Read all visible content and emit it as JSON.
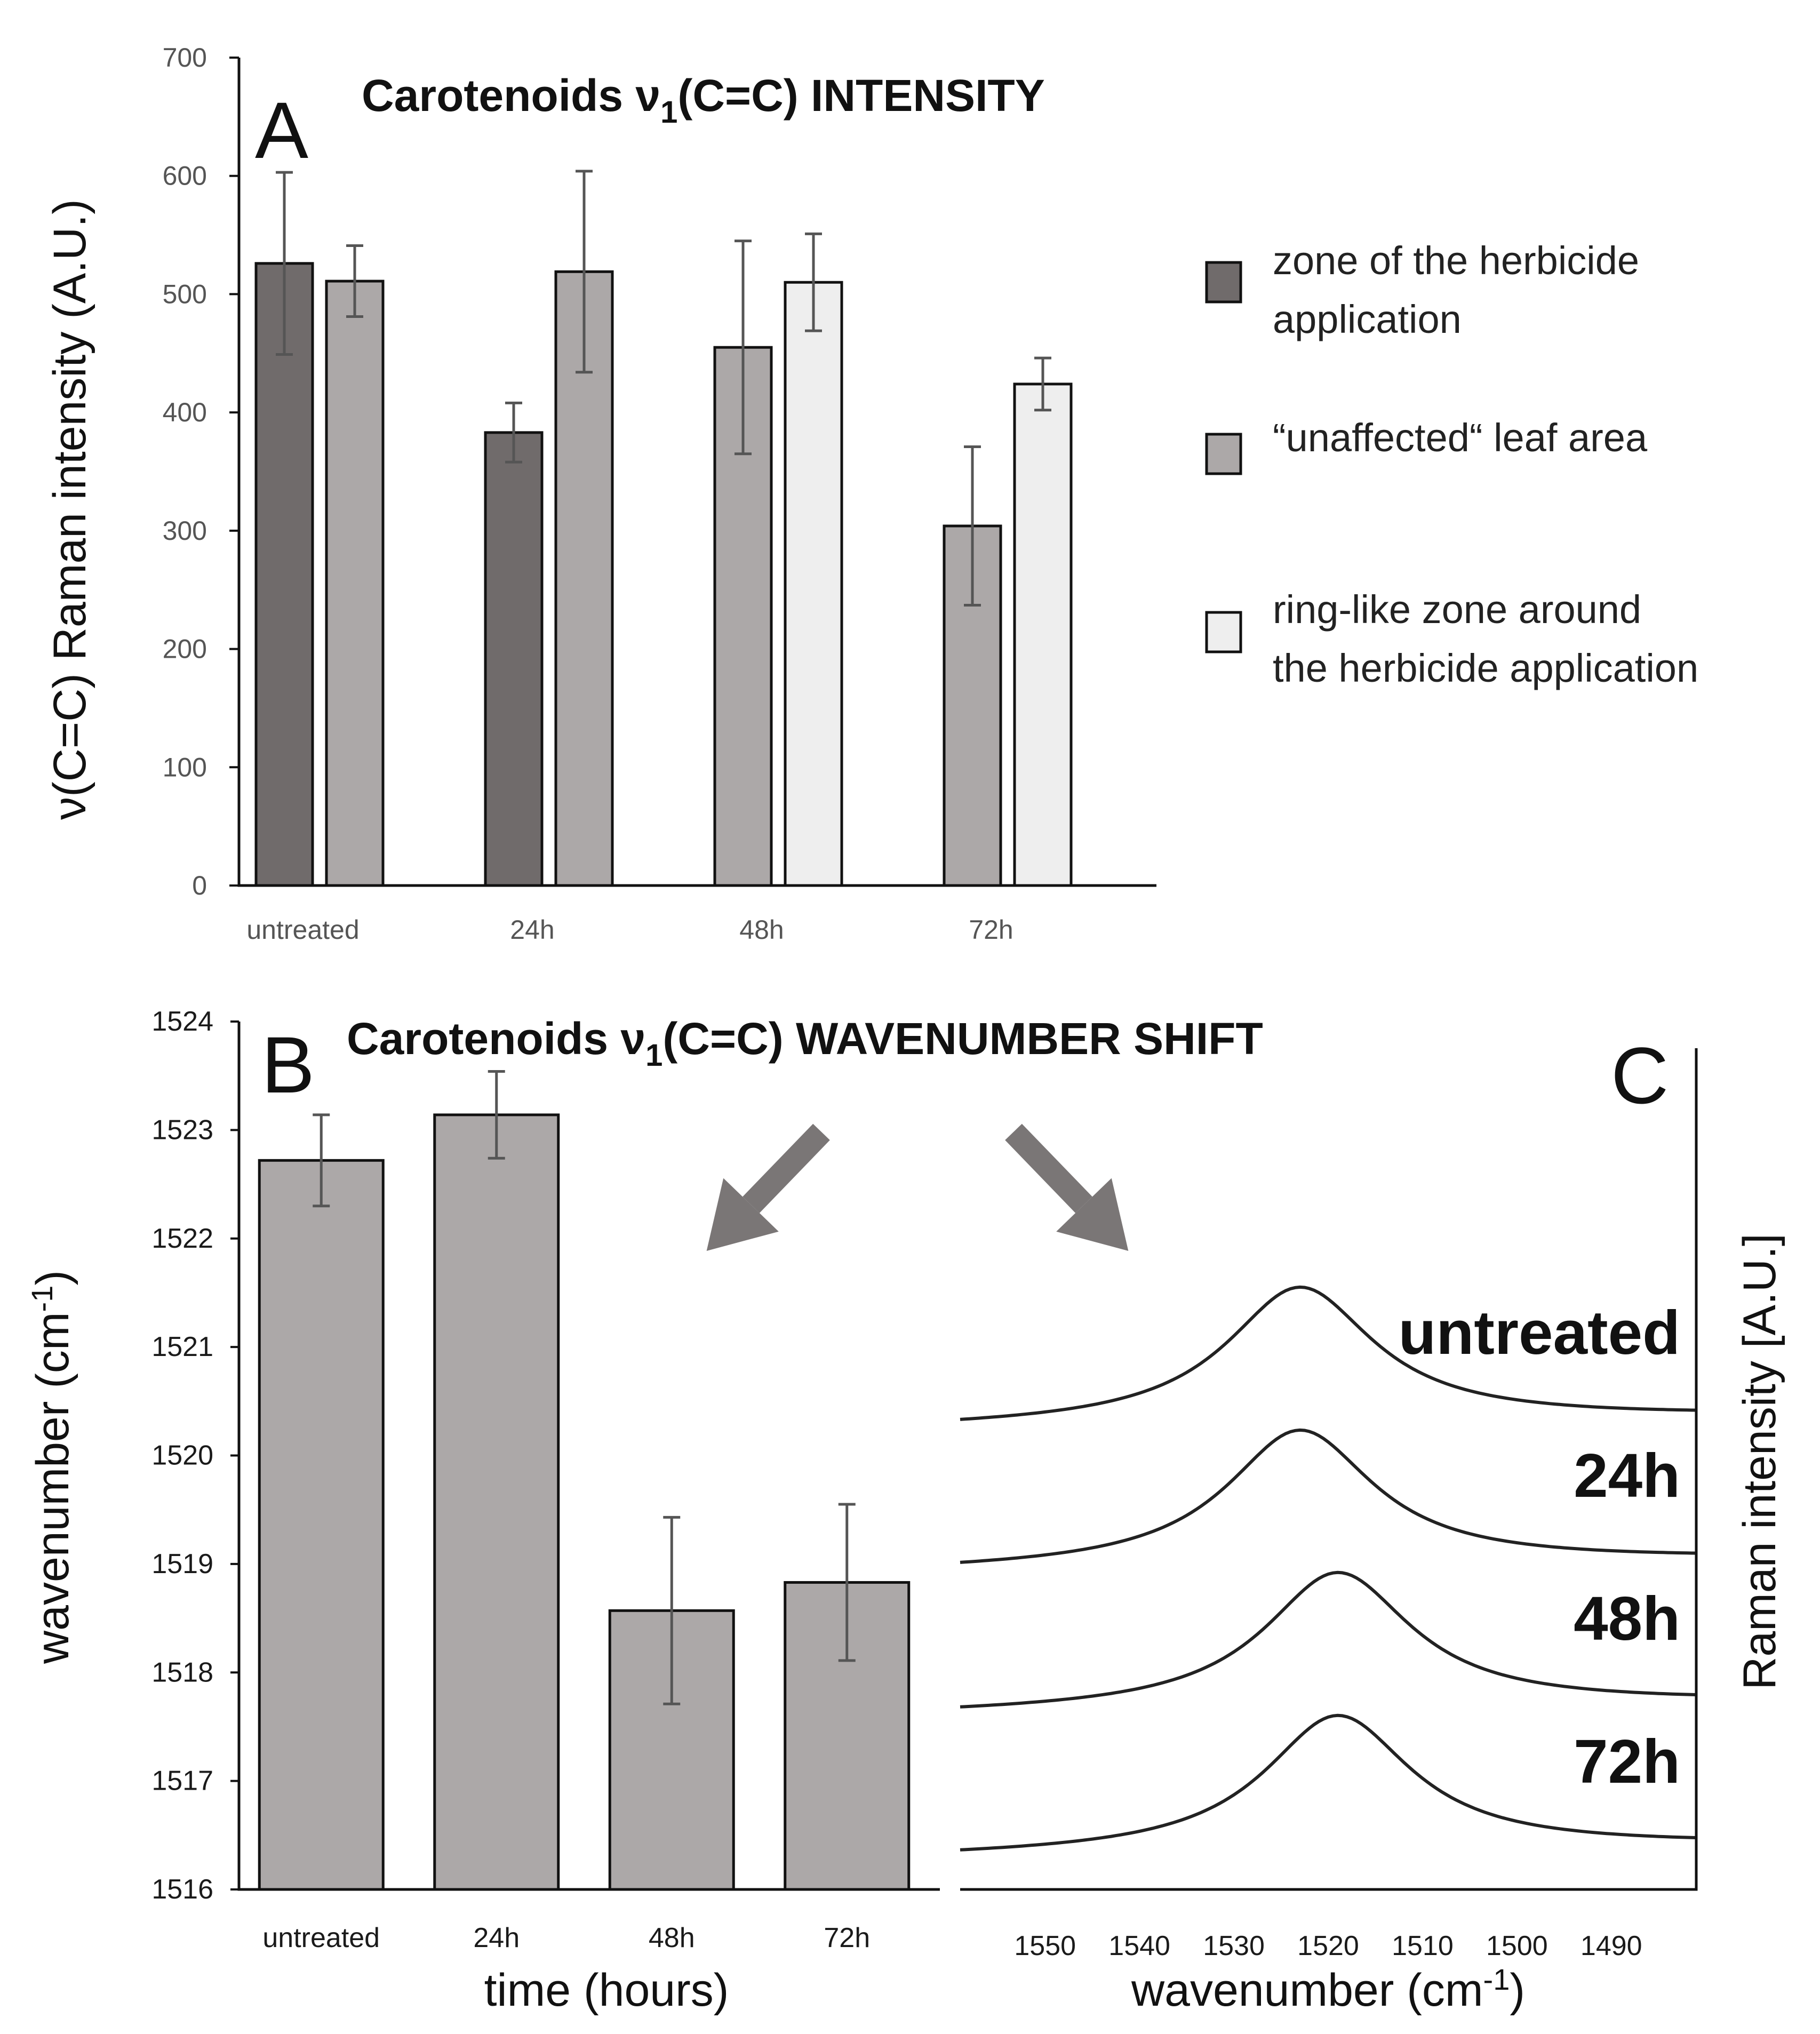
{
  "chart_data": [
    {
      "id": "A",
      "type": "bar",
      "panel_label": "A",
      "title_prefix": "Carotenoids ν",
      "title_sub": "1",
      "title_suffix": "(C=C) INTENSITY",
      "ylabel": "ν(C=C) Raman intensity (A.U.)",
      "xlabel": "",
      "ylim": [
        0,
        700
      ],
      "yticks": [
        0,
        100,
        200,
        300,
        400,
        500,
        600,
        700
      ],
      "categories": [
        "untreated",
        "24h",
        "48h",
        "72h"
      ],
      "series": [
        {
          "name": "zone of the herbicide application",
          "color": "#706b6b",
          "values": [
            526,
            383,
            null,
            null
          ],
          "errors": [
            77,
            25,
            null,
            null
          ]
        },
        {
          "name": "“unaffected“ leaf area",
          "color": "#aca8a8",
          "values": [
            511,
            519,
            455,
            304
          ],
          "errors": [
            30,
            85,
            90,
            67
          ]
        },
        {
          "name": "ring-like zone around the herbicide application",
          "color": "#eeeeee",
          "values": [
            null,
            null,
            510,
            424
          ],
          "errors": [
            null,
            null,
            41,
            22
          ]
        }
      ],
      "legend": {
        "position": "right",
        "items": [
          {
            "lines": [
              "zone of the herbicide",
              "application"
            ],
            "color": "#706b6b"
          },
          {
            "lines": [
              "“unaffected“ leaf area"
            ],
            "color": "#aca8a8"
          },
          {
            "lines": [
              "ring-like zone around",
              "the herbicide application"
            ],
            "color": "#eeeeee"
          }
        ]
      }
    },
    {
      "id": "B",
      "type": "bar",
      "panel_label": "B",
      "title_prefix": "Carotenoids ν",
      "title_sub": "1",
      "title_suffix": "(C=C) WAVENUMBER SHIFT",
      "ylabel": "wavenumber (cm-1)",
      "ylabel_parts": [
        "wavenumber (cm",
        "-1",
        ")"
      ],
      "xlabel": "time (hours)",
      "ylim": [
        1516,
        1524
      ],
      "yticks": [
        1516,
        1517,
        1518,
        1519,
        1520,
        1521,
        1522,
        1523,
        1524
      ],
      "categories": [
        "untreated",
        "24h",
        "48h",
        "72h"
      ],
      "series": [
        {
          "name": "wavenumber",
          "color": "#aca8a8",
          "values": [
            1522.72,
            1523.14,
            1518.57,
            1518.83
          ],
          "errors": [
            0.42,
            0.4,
            0.86,
            0.72
          ]
        }
      ]
    },
    {
      "id": "C",
      "type": "line",
      "panel_label": "C",
      "xlabel": "wavenumber (cm-1)",
      "xlabel_parts": [
        "wavenumber (cm",
        "-1",
        ")"
      ],
      "ylabel": "Raman intensity [A.U.]",
      "xlim": [
        1559,
        1481
      ],
      "xticks": [
        1550,
        1540,
        1530,
        1520,
        1510,
        1500,
        1490
      ],
      "series": [
        {
          "name": "untreated",
          "peak": 1523.0,
          "offset": 3.0
        },
        {
          "name": "24h",
          "peak": 1523.0,
          "offset": 2.0
        },
        {
          "name": "48h",
          "peak": 1519.0,
          "offset": 1.0
        },
        {
          "name": "72h",
          "peak": 1519.0,
          "offset": 0.0
        }
      ]
    }
  ]
}
